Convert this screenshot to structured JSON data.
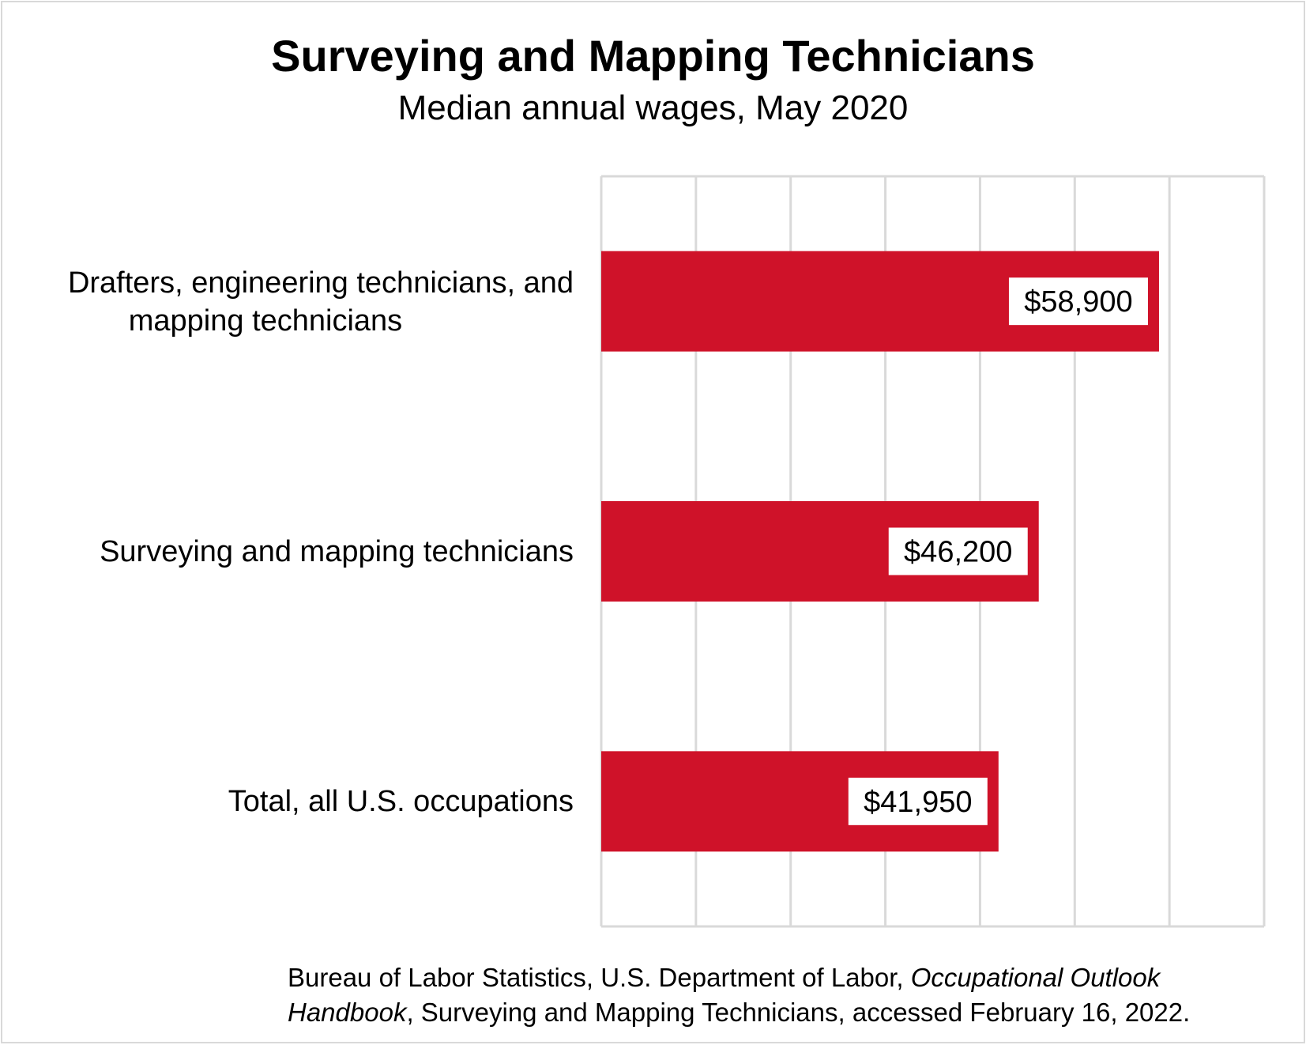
{
  "chart_data": {
    "type": "bar",
    "orientation": "horizontal",
    "title": "Surveying and Mapping Technicians",
    "subtitle": "Median annual wages, May 2020",
    "categories": [
      "Drafters, engineering technicians, and mapping technicians",
      "Surveying and mapping technicians",
      "Total, all U.S. occupations"
    ],
    "category_lines": [
      [
        "Drafters, engineering technicians, and",
        "mapping technicians"
      ],
      [
        "Surveying and mapping technicians"
      ],
      [
        "Total, all U.S. occupations"
      ]
    ],
    "values": [
      58900,
      46200,
      41950
    ],
    "data_labels": [
      "$58,900",
      "$46,200",
      "$41,950"
    ],
    "xlim": [
      0,
      70000
    ],
    "x_grid_step": 10000,
    "grid": true,
    "x_tick_labels_shown": false,
    "bar_color": "#cf1229",
    "grid_color": "#d9d9d9"
  },
  "footer": {
    "source_plain_1": "Bureau of Labor Statistics, U.S. Department of Labor, ",
    "source_italic_1": "Occupational Outlook",
    "source_italic_2": "Handbook",
    "source_plain_2": ", Surveying and Mapping Technicians, accessed February 16, 2022."
  }
}
